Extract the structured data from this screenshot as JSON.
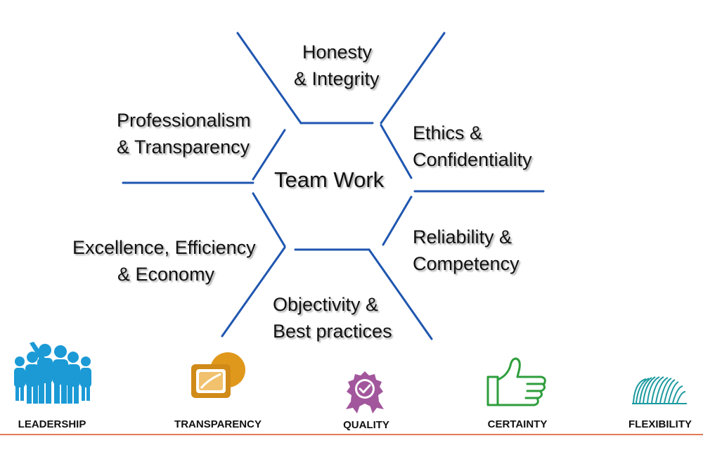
{
  "diagram": {
    "center_label": "Team Work",
    "line_color": "#1f56b0",
    "values": {
      "top": [
        "Honesty",
        "& Integrity"
      ],
      "upper_left": [
        "Professionalism",
        "& Transparency"
      ],
      "upper_right": [
        "Ethics &",
        "Confidentiality"
      ],
      "lower_left": [
        "Excellence, Efficiency",
        "& Economy"
      ],
      "lower_right": [
        "Reliability &",
        "Competency"
      ],
      "bottom": [
        "Objectivity &",
        "Best practices"
      ]
    }
  },
  "attributes": [
    {
      "label": "LEADERSHIP",
      "icon": "leadership-people-icon",
      "color": "#1b9ad6"
    },
    {
      "label": "TRANSPARENCY",
      "icon": "transparency-frames-icon",
      "color": "#e0981c"
    },
    {
      "label": "QUALITY",
      "icon": "quality-award-badge-icon",
      "color": "#a2569c"
    },
    {
      "label": "CERTAINTY",
      "icon": "thumbs-up-icon",
      "color": "#2e9e3c"
    },
    {
      "label": "FLEXIBILITY",
      "icon": "spring-coil-icon",
      "color": "#1c9aa0"
    }
  ],
  "footer_rule_color": "#e07a55"
}
